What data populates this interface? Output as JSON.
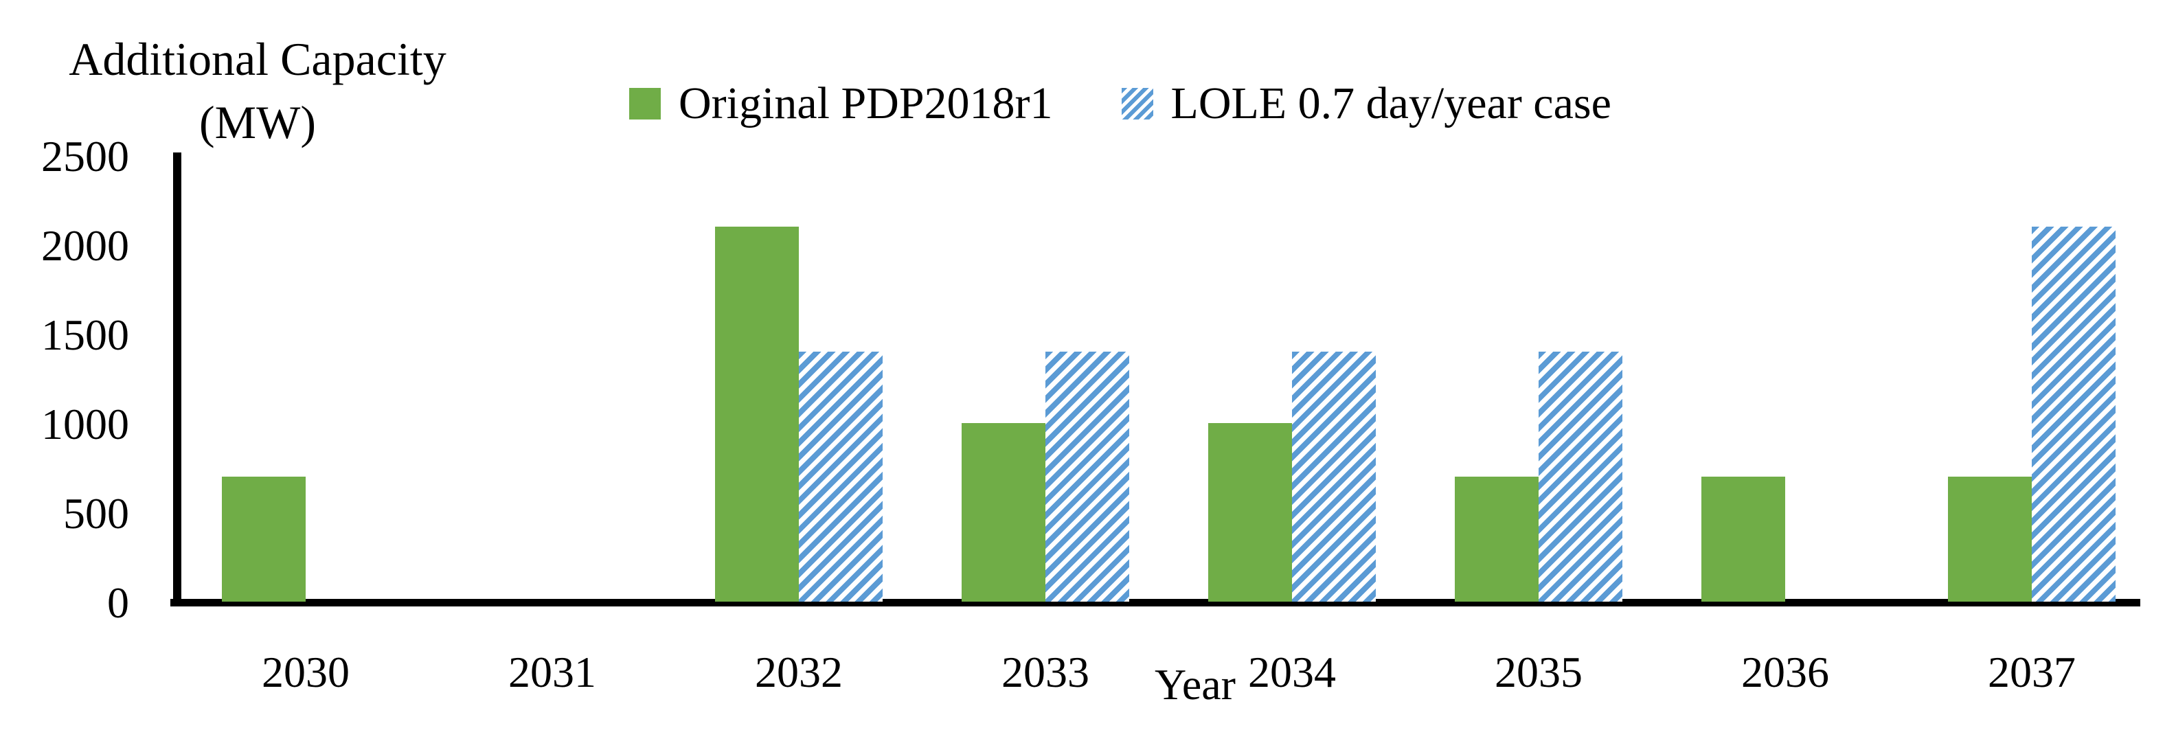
{
  "chart_data": {
    "type": "bar",
    "title_lines": [
      "Additional Capacity",
      "(MW)"
    ],
    "ylabel": "Additional Capacity (MW)",
    "xlabel": "Year",
    "categories": [
      "2030",
      "2031",
      "2032",
      "2033",
      "2034",
      "2035",
      "2036",
      "2037"
    ],
    "series": [
      {
        "name": "Original PDP2018r1",
        "color": "#70AD47",
        "pattern": "solid",
        "values": [
          700,
          0,
          2100,
          1000,
          1000,
          700,
          700,
          700
        ]
      },
      {
        "name": "LOLE 0.7 day/year case",
        "color": "#5B9BD5",
        "pattern": "diagonal-hatch",
        "values": [
          0,
          0,
          1400,
          1400,
          1400,
          1400,
          0,
          2100
        ]
      }
    ],
    "ylim": [
      0,
      2500
    ],
    "ytick_step": 500,
    "yticks": [
      "0",
      "500",
      "1000",
      "1500",
      "2000",
      "2500"
    ],
    "grid": false,
    "legend_position": "top-center",
    "axis_color": "#000000",
    "background": "#FFFFFF"
  }
}
